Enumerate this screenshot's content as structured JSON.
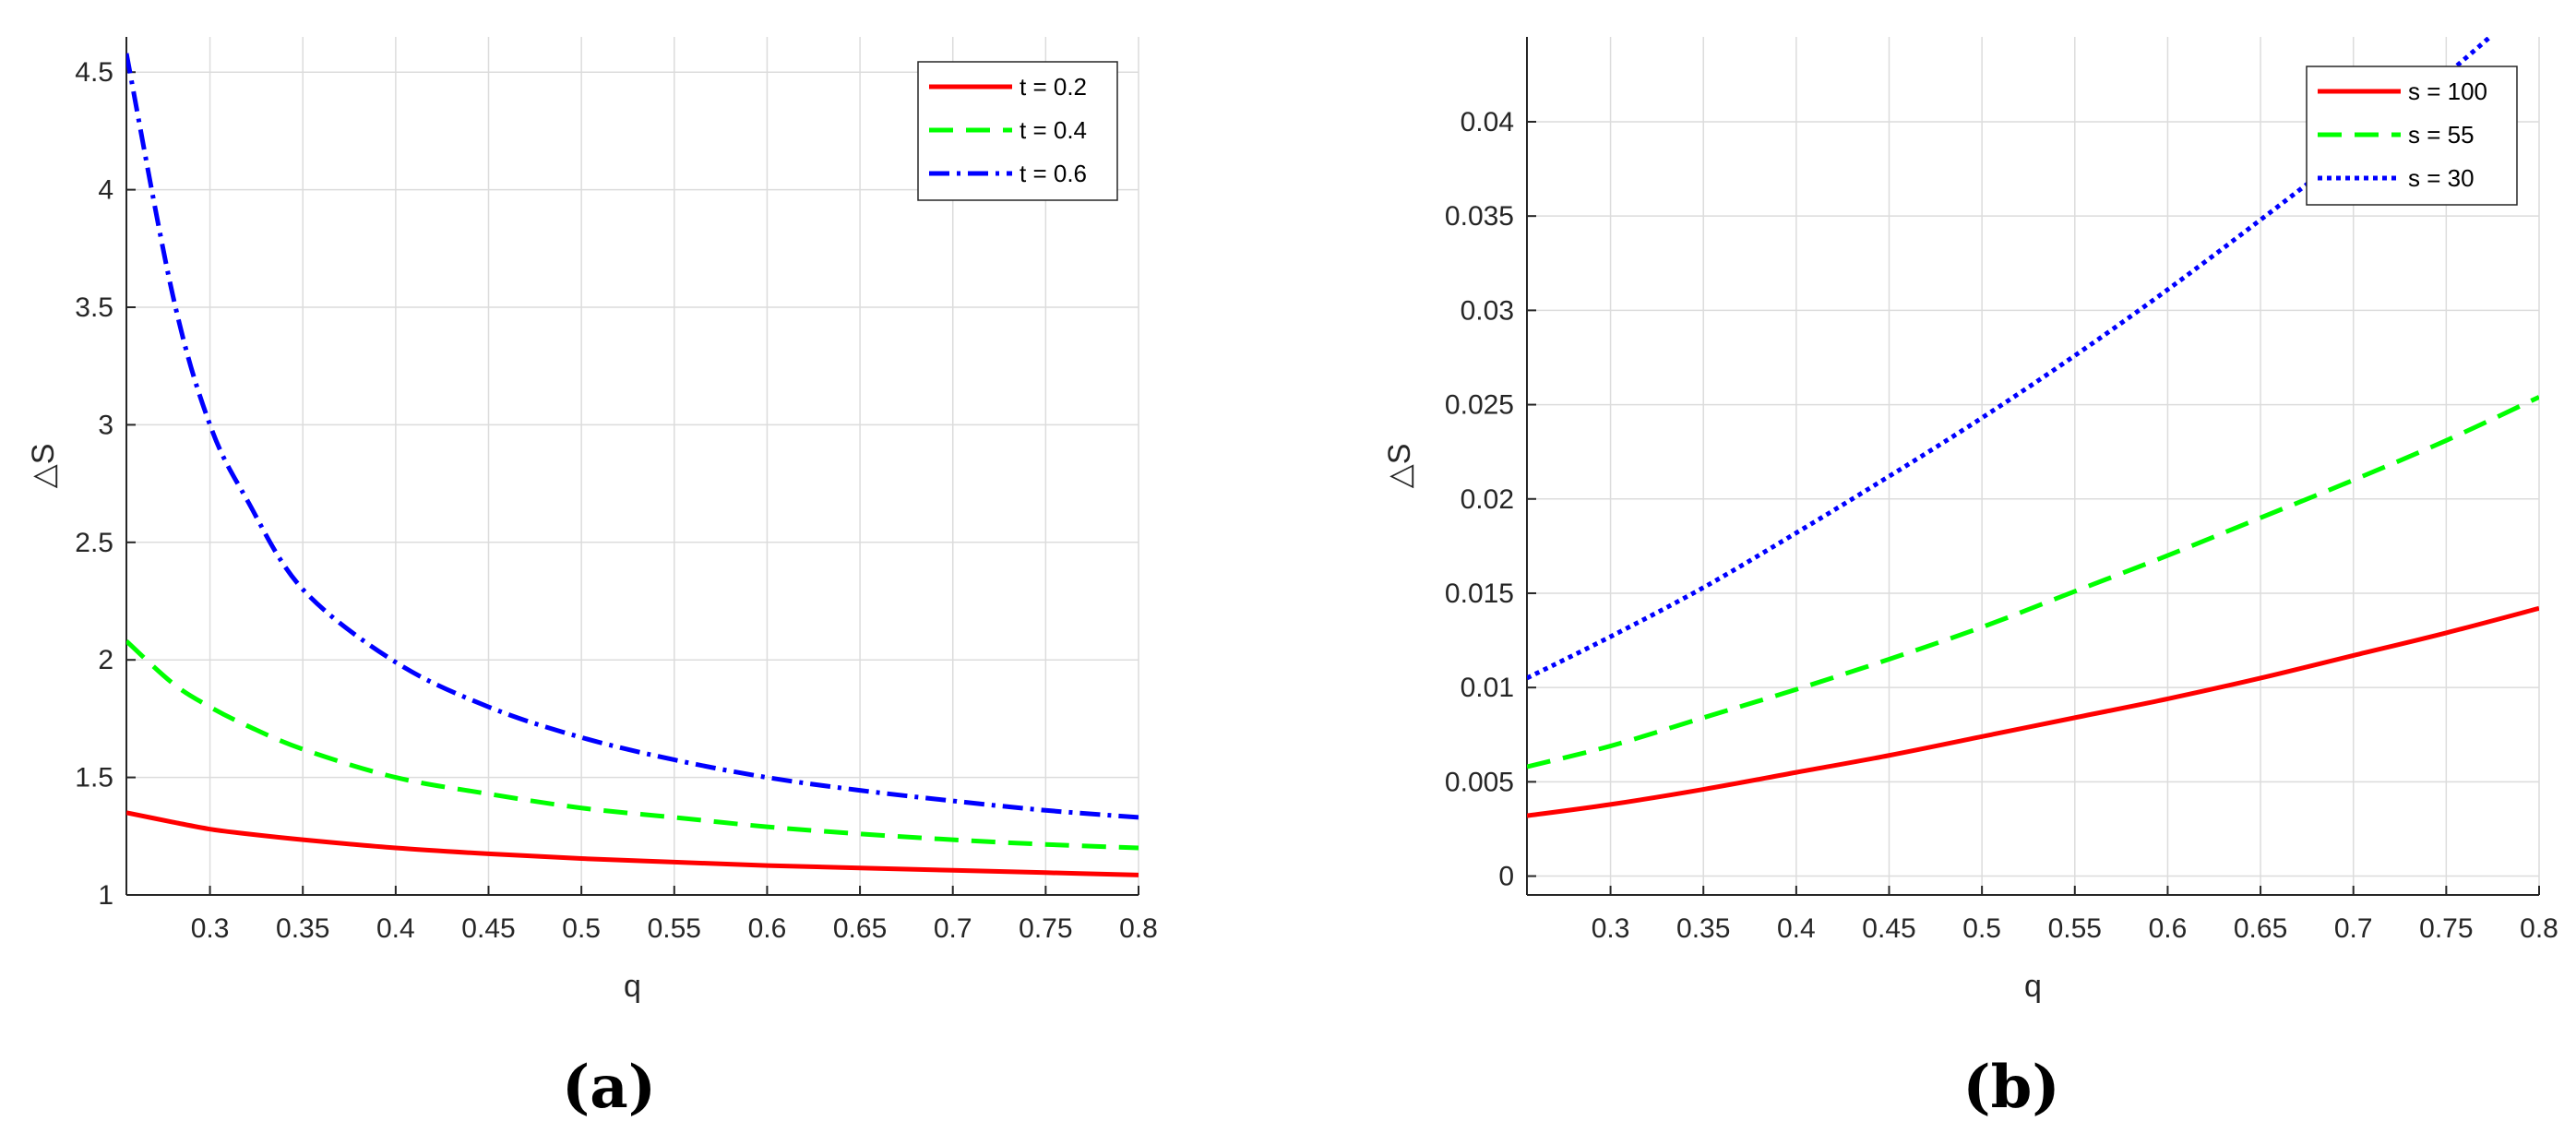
{
  "chart_data": [
    {
      "type": "line",
      "panel_label": "(a)",
      "xlabel": "q",
      "ylabel": "△S",
      "xlim": [
        0.255,
        0.8
      ],
      "ylim": [
        1,
        4.65
      ],
      "xticks": [
        0.3,
        0.35,
        0.4,
        0.45,
        0.5,
        0.55,
        0.6,
        0.65,
        0.7,
        0.75,
        0.8
      ],
      "xtick_labels": [
        "0.3",
        "0.35",
        "0.4",
        "0.45",
        "0.5",
        "0.55",
        "0.6",
        "0.65",
        "0.7",
        "0.75",
        "0.8"
      ],
      "yticks": [
        1,
        1.5,
        2,
        2.5,
        3,
        3.5,
        4,
        4.5
      ],
      "ytick_labels": [
        "1",
        "1.5",
        "2",
        "2.5",
        "3",
        "3.5",
        "4",
        "4.5"
      ],
      "grid": true,
      "legend_position": "top-right",
      "x": [
        0.255,
        0.28,
        0.3,
        0.32,
        0.35,
        0.4,
        0.45,
        0.5,
        0.55,
        0.6,
        0.65,
        0.7,
        0.75,
        0.8
      ],
      "series": [
        {
          "name": "t = 0.2",
          "color": "#ff0000",
          "dash": "solid",
          "values": [
            1.35,
            1.31,
            1.28,
            1.26,
            1.235,
            1.2,
            1.175,
            1.155,
            1.14,
            1.125,
            1.115,
            1.105,
            1.095,
            1.085
          ]
        },
        {
          "name": "t = 0.4",
          "color": "#00ff00",
          "dash": "dashed",
          "values": [
            2.08,
            1.9,
            1.8,
            1.72,
            1.62,
            1.5,
            1.43,
            1.37,
            1.33,
            1.29,
            1.26,
            1.235,
            1.215,
            1.2
          ]
        },
        {
          "name": "t = 0.6",
          "color": "#0000ff",
          "dash": "dashdot",
          "values": [
            4.58,
            3.55,
            3.0,
            2.68,
            2.3,
            1.99,
            1.8,
            1.67,
            1.575,
            1.5,
            1.445,
            1.4,
            1.36,
            1.33
          ]
        }
      ]
    },
    {
      "type": "line",
      "panel_label": "(b)",
      "xlabel": "q",
      "ylabel": "△S",
      "xlim": [
        0.255,
        0.8
      ],
      "ylim": [
        -0.001,
        0.0445
      ],
      "xticks": [
        0.3,
        0.35,
        0.4,
        0.45,
        0.5,
        0.55,
        0.6,
        0.65,
        0.7,
        0.75,
        0.8
      ],
      "xtick_labels": [
        "0.3",
        "0.35",
        "0.4",
        "0.45",
        "0.5",
        "0.55",
        "0.6",
        "0.65",
        "0.7",
        "0.75",
        "0.8"
      ],
      "yticks": [
        0,
        0.005,
        0.01,
        0.015,
        0.02,
        0.025,
        0.03,
        0.035,
        0.04
      ],
      "ytick_labels": [
        "0",
        "0.005",
        "0.01",
        "0.015",
        "0.02",
        "0.025",
        "0.03",
        "0.035",
        "0.04"
      ],
      "grid": true,
      "legend_position": "top-right",
      "x": [
        0.255,
        0.3,
        0.35,
        0.4,
        0.45,
        0.5,
        0.55,
        0.6,
        0.65,
        0.7,
        0.75,
        0.8
      ],
      "series": [
        {
          "name": "s = 100",
          "color": "#ff0000",
          "dash": "solid",
          "values": [
            0.0032,
            0.0038,
            0.0046,
            0.0055,
            0.0064,
            0.0074,
            0.0084,
            0.0094,
            0.0105,
            0.0117,
            0.0129,
            0.0142
          ]
        },
        {
          "name": "s = 55",
          "color": "#00ff00",
          "dash": "dashed",
          "values": [
            0.0058,
            0.0069,
            0.0084,
            0.0099,
            0.0115,
            0.0132,
            0.0151,
            0.017,
            0.019,
            0.021,
            0.0231,
            0.0254
          ]
        },
        {
          "name": "s = 30",
          "color": "#0000ff",
          "dash": "dotted",
          "values": [
            0.0105,
            0.0127,
            0.0153,
            0.0182,
            0.0212,
            0.0243,
            0.0276,
            0.0311,
            0.0348,
            0.0386,
            0.0425,
            0.0468
          ]
        }
      ]
    }
  ]
}
